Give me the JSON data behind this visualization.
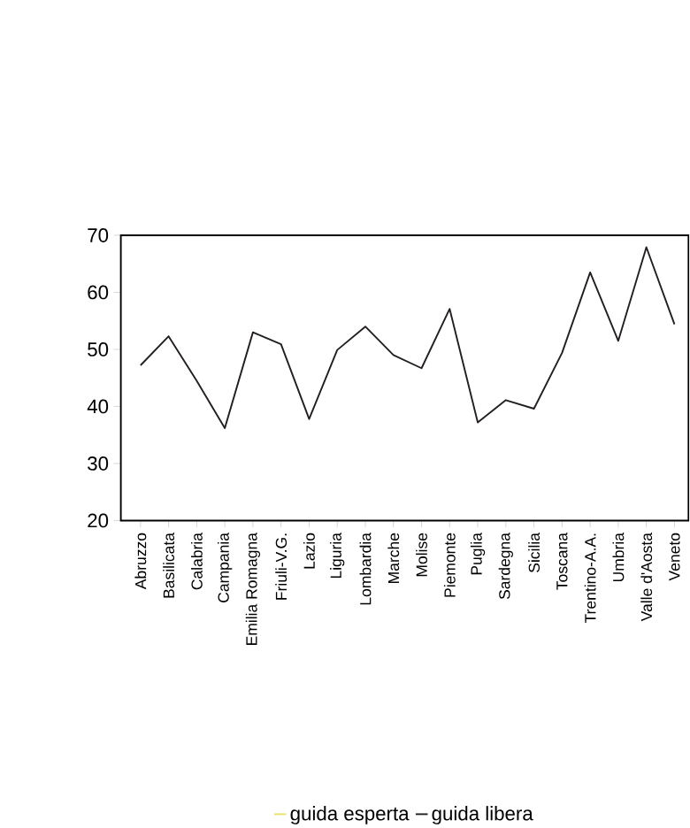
{
  "chart_data": {
    "type": "line",
    "categories": [
      "Abruzzo",
      "Basilicata",
      "Calabria",
      "Campania",
      "Emilia Romagna",
      "Friuli-V.G.",
      "Lazio",
      "Liguria",
      "Lombardia",
      "Marche",
      "Molise",
      "Piemonte",
      "Puglia",
      "Sardegna",
      "Sicilia",
      "Toscana",
      "Trentino-A.A.",
      "Umbria",
      "Valle d'Aosta",
      "Veneto"
    ],
    "series": [
      {
        "name": "guida esperta",
        "color": "#e8e070",
        "values": [
          null,
          null,
          null,
          null,
          null,
          null,
          null,
          null,
          null,
          null,
          null,
          null,
          null,
          null,
          null,
          null,
          null,
          null,
          null,
          null
        ]
      },
      {
        "name": "guida libera",
        "color": "#231f20",
        "values": [
          47.2,
          52.3,
          44.5,
          36.2,
          53.0,
          50.9,
          37.8,
          49.9,
          54.0,
          49.0,
          46.7,
          57.1,
          37.2,
          41.1,
          39.6,
          49.4,
          63.5,
          51.5,
          67.9,
          54.4
        ]
      }
    ],
    "ylim": [
      20,
      70
    ],
    "yticks": [
      20,
      30,
      40,
      50,
      60,
      70
    ],
    "grid": false,
    "legend": "bottom",
    "marker": "none",
    "line_style": "solid"
  }
}
